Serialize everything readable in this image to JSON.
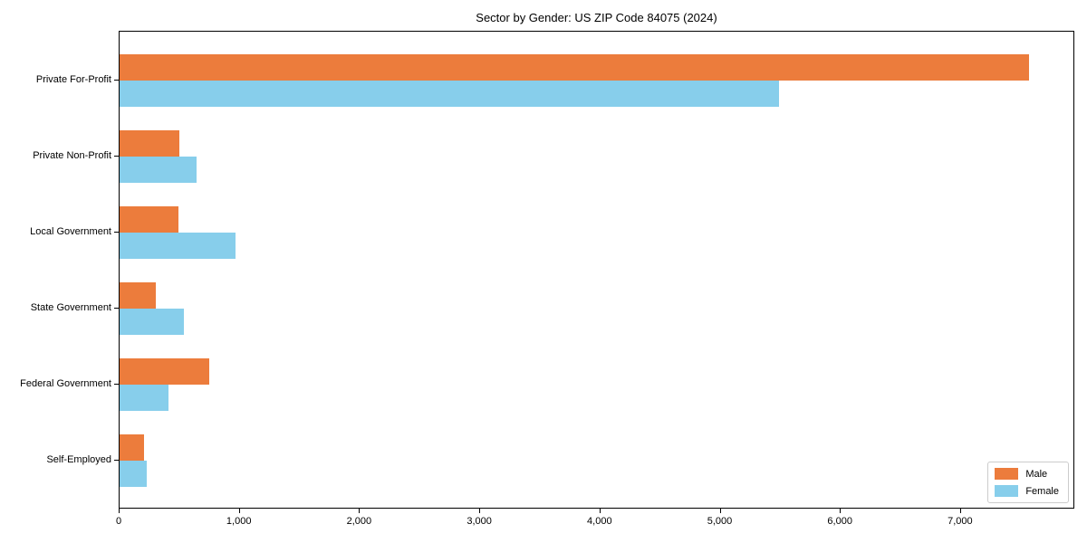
{
  "title": "Sector by Gender: US ZIP Code 84075 (2024)",
  "chart_data": {
    "type": "bar",
    "orientation": "horizontal",
    "title": "Sector by Gender: US ZIP Code 84075 (2024)",
    "categories": [
      "Private For-Profit",
      "Private Non-Profit",
      "Local Government",
      "State Government",
      "Federal Government",
      "Self-Employed"
    ],
    "series": [
      {
        "name": "Male",
        "color": "#ec7c3c",
        "values": [
          7580,
          500,
          490,
          300,
          750,
          200
        ]
      },
      {
        "name": "Female",
        "color": "#87ceeb",
        "values": [
          5500,
          640,
          970,
          540,
          405,
          225
        ]
      }
    ],
    "xlabel": "",
    "ylabel": "",
    "xlim": [
      0,
      7950
    ],
    "x_ticks": [
      {
        "value": 0,
        "label": "0"
      },
      {
        "value": 1000,
        "label": "1,000"
      },
      {
        "value": 2000,
        "label": "2,000"
      },
      {
        "value": 3000,
        "label": "3,000"
      },
      {
        "value": 4000,
        "label": "4,000"
      },
      {
        "value": 5000,
        "label": "5,000"
      },
      {
        "value": 6000,
        "label": "6,000"
      },
      {
        "value": 7000,
        "label": "7,000"
      }
    ],
    "grid": false,
    "legend_position": "lower right",
    "frame": "full-box",
    "colors": {
      "male": "#ec7c3c",
      "female": "#87ceeb",
      "spine": "#000000",
      "background": "#ffffff"
    }
  }
}
